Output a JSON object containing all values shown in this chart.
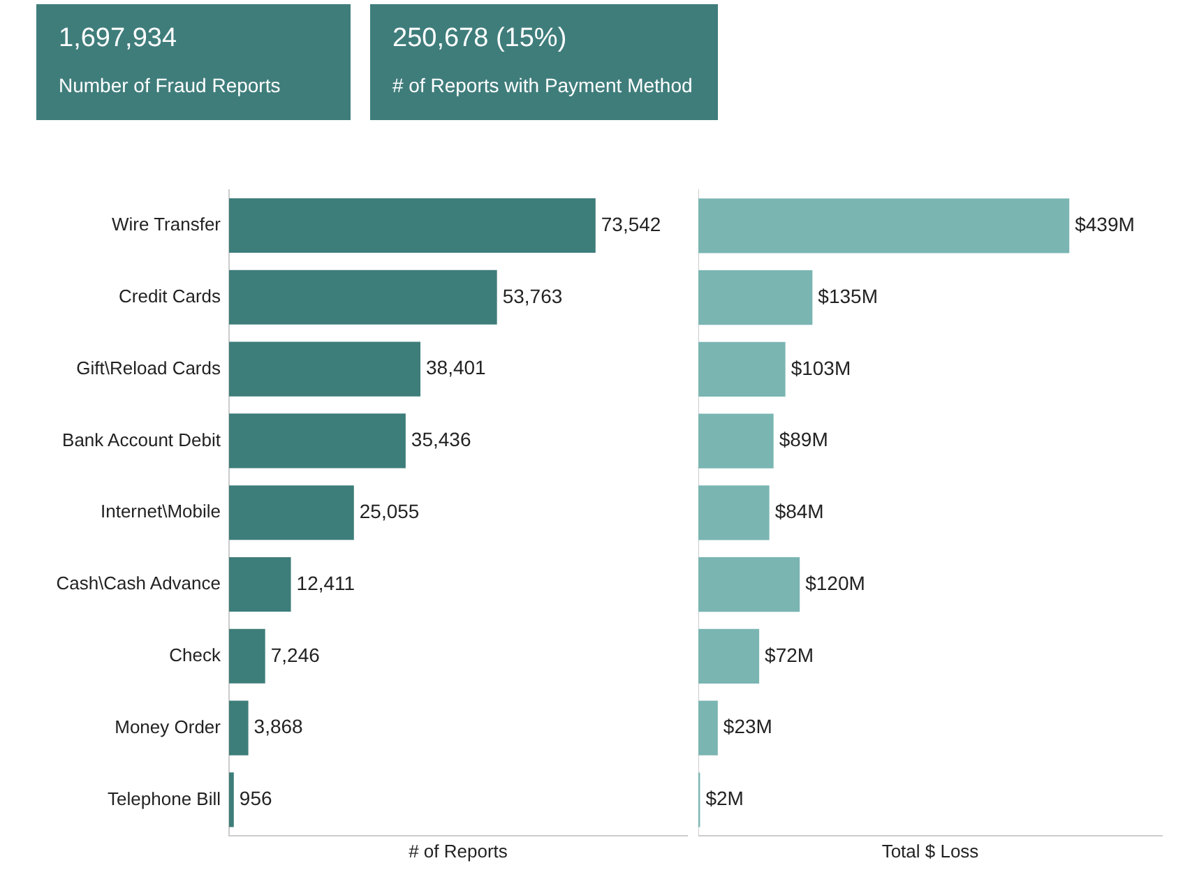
{
  "chart_data": [
    {
      "type": "other",
      "color": "#3f7d7b",
      "annotations": [
        "1,697,934",
        "Number of Fraud Reports"
      ]
    },
    {
      "type": "other",
      "color": "#3f7d7b",
      "annotations": [
        "250,678  (15%)",
        "# of Reports with Payment Method"
      ]
    },
    {
      "type": "bar",
      "orientation": "horizontal",
      "categories": [
        "Wire Transfer",
        "Credit Cards",
        "Gift\\Reload Cards",
        "Bank Account Debit",
        "Internet\\Mobile",
        "Cash\\Cash Advance",
        "Check",
        "Money Order",
        "Telephone Bill"
      ],
      "values": [
        73542,
        53763,
        38401,
        35436,
        25055,
        12411,
        7246,
        3868,
        956
      ],
      "color": "#3d7d7a",
      "value_labels": [
        "73,542",
        "53,763",
        "38,401",
        "35,436",
        "25,055",
        "12,411",
        "7,246",
        "3,868",
        "956"
      ],
      "xlabel": "# of Reports",
      "tick_labels": "y",
      "legend": false,
      "grid": false
    },
    {
      "type": "bar",
      "orientation": "horizontal",
      "categories": [
        null,
        null,
        null,
        null,
        null,
        null,
        null,
        null,
        null
      ],
      "values": [
        439,
        135,
        103,
        89,
        84,
        120,
        72,
        23,
        2
      ],
      "color": "#7ab5b2",
      "value_labels": [
        "$439M",
        "$135M",
        "$103M",
        "$89M",
        "$84M",
        "$120M",
        "$72M",
        "$23M",
        "$2M"
      ],
      "xlabel": "Total $ Loss",
      "tick_labels": false,
      "legend": false,
      "grid": false
    }
  ]
}
